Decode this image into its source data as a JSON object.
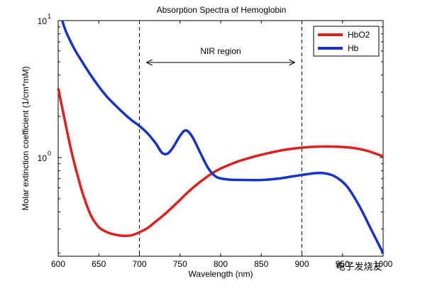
{
  "chart_data": {
    "type": "line",
    "title": "Absorption Spectra of Hemoglobin",
    "xlabel": "Wavelength (nm)",
    "ylabel": "Molar extinction coefficient (1/cm*mM)",
    "xlim": [
      600,
      1000
    ],
    "ylim": [
      0.19,
      10
    ],
    "yscale": "log",
    "x_ticks": [
      600,
      650,
      700,
      750,
      800,
      850,
      900,
      950,
      1000
    ],
    "x_tick_labels": [
      "600",
      "650",
      "700",
      "750",
      "800",
      "850",
      "900",
      "950",
      "1000"
    ],
    "y_ticks": [
      {
        "value": 1,
        "base": "10",
        "exp": "0"
      },
      {
        "value": 10,
        "base": "10",
        "exp": "1"
      }
    ],
    "grid": false,
    "legend": "top-right",
    "series": [
      {
        "name": "HbO2",
        "color": "#e0201e",
        "points": [
          [
            600,
            3.2
          ],
          [
            605,
            2.3
          ],
          [
            610,
            1.65
          ],
          [
            615,
            1.2
          ],
          [
            620,
            0.9
          ],
          [
            625,
            0.7
          ],
          [
            630,
            0.55
          ],
          [
            640,
            0.38
          ],
          [
            650,
            0.31
          ],
          [
            660,
            0.285
          ],
          [
            670,
            0.273
          ],
          [
            680,
            0.268
          ],
          [
            690,
            0.27
          ],
          [
            700,
            0.284
          ],
          [
            710,
            0.305
          ],
          [
            720,
            0.34
          ],
          [
            730,
            0.38
          ],
          [
            740,
            0.43
          ],
          [
            750,
            0.49
          ],
          [
            760,
            0.56
          ],
          [
            770,
            0.63
          ],
          [
            780,
            0.7
          ],
          [
            790,
            0.77
          ],
          [
            800,
            0.83
          ],
          [
            820,
            0.93
          ],
          [
            840,
            1.01
          ],
          [
            860,
            1.08
          ],
          [
            880,
            1.14
          ],
          [
            900,
            1.18
          ],
          [
            920,
            1.2
          ],
          [
            940,
            1.2
          ],
          [
            960,
            1.18
          ],
          [
            980,
            1.12
          ],
          [
            1000,
            1.02
          ]
        ]
      },
      {
        "name": "Hb",
        "color": "#1733c8",
        "points": [
          [
            605,
            10
          ],
          [
            610,
            8.2
          ],
          [
            620,
            6.2
          ],
          [
            630,
            4.95
          ],
          [
            640,
            4.0
          ],
          [
            650,
            3.3
          ],
          [
            660,
            2.78
          ],
          [
            670,
            2.42
          ],
          [
            680,
            2.12
          ],
          [
            690,
            1.88
          ],
          [
            700,
            1.7
          ],
          [
            710,
            1.5
          ],
          [
            720,
            1.27
          ],
          [
            728,
            1.08
          ],
          [
            735,
            1.07
          ],
          [
            742,
            1.2
          ],
          [
            750,
            1.44
          ],
          [
            757,
            1.58
          ],
          [
            765,
            1.42
          ],
          [
            775,
            1.08
          ],
          [
            785,
            0.83
          ],
          [
            795,
            0.72
          ],
          [
            810,
            0.69
          ],
          [
            830,
            0.685
          ],
          [
            850,
            0.685
          ],
          [
            870,
            0.7
          ],
          [
            890,
            0.73
          ],
          [
            910,
            0.76
          ],
          [
            925,
            0.77
          ],
          [
            940,
            0.73
          ],
          [
            955,
            0.62
          ],
          [
            970,
            0.45
          ],
          [
            985,
            0.3
          ],
          [
            1000,
            0.2
          ]
        ]
      }
    ],
    "vlines": [
      700,
      900
    ],
    "annotation": {
      "text": "NIR region",
      "from": 700,
      "to": 900
    }
  },
  "watermark": "电子发烧友"
}
